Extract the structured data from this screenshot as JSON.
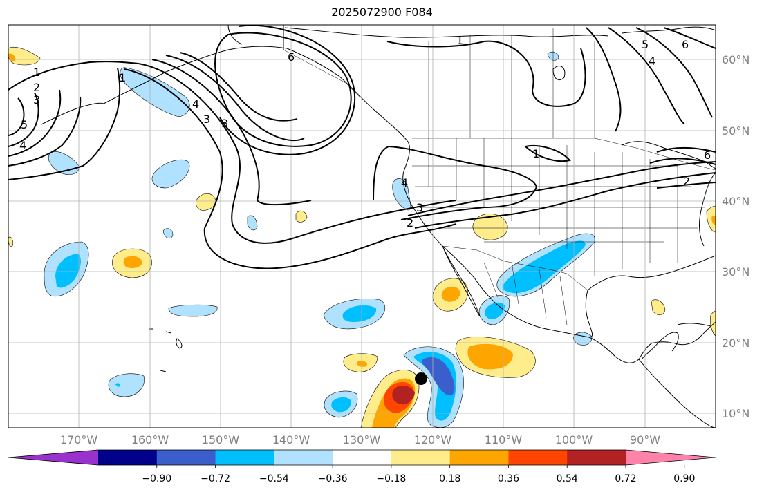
{
  "title": "2025072900 F084",
  "map": {
    "projection": "equirectangular",
    "lon_range": [
      -180,
      -80
    ],
    "lat_range": [
      8,
      65
    ],
    "graticule_on": true,
    "lon_ticks": [
      "170°W",
      "160°W",
      "150°W",
      "140°W",
      "130°W",
      "120°W",
      "110°W",
      "100°W",
      "90°W"
    ],
    "lat_ticks": [
      "10°N",
      "20°N",
      "30°N",
      "40°N",
      "50°N",
      "60°N"
    ],
    "marker": {
      "name": "black-dot",
      "lon": -120.6,
      "lat": 14.8
    }
  },
  "colorbar": {
    "tick_labels": [
      "−0.90",
      "−0.72",
      "−0.54",
      "−0.36",
      "−0.18",
      "0.18",
      "0.36",
      "0.54",
      "0.72",
      "0.90"
    ],
    "colors": [
      "#9932cc",
      "#00008b",
      "#3a5fcd",
      "#00bfff",
      "#b0e2ff",
      "#ffffff",
      "#ffec8b",
      "#ffa500",
      "#ff4500",
      "#b22222",
      "#ff82ab"
    ],
    "extend": "both"
  },
  "contour_labels": [
    "1",
    "2",
    "3",
    "4",
    "5",
    "6"
  ],
  "colors": {
    "contour": "#000000",
    "coast": "#000000",
    "grid": "#b0b0b0",
    "tick_label": "#808080"
  }
}
